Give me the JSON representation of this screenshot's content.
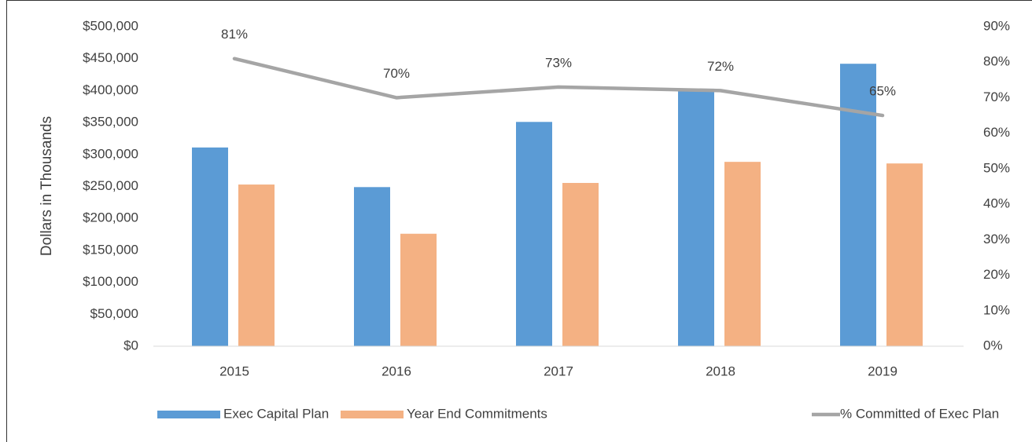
{
  "chart_data": {
    "type": "bar",
    "y_label": "Dollars in Thousands",
    "categories": [
      "2015",
      "2016",
      "2017",
      "2018",
      "2019"
    ],
    "series": [
      {
        "name": "Exec Capital Plan",
        "color": "#5b9bd5",
        "type": "bar",
        "values": [
          311000,
          249000,
          351000,
          403000,
          442000
        ]
      },
      {
        "name": "Year End Commitments",
        "color": "#f4b183",
        "type": "bar",
        "values": [
          253000,
          176000,
          255500,
          288500,
          286000
        ]
      },
      {
        "name": "% Committed of Exec Plan",
        "color": "#a5a5a5",
        "type": "line",
        "axis": "y2",
        "values": [
          81,
          70,
          73,
          72,
          65
        ],
        "value_labels": [
          "81%",
          "70%",
          "73%",
          "72%",
          "65%"
        ]
      }
    ],
    "ylim": [
      0,
      500000
    ],
    "yticks": [
      {
        "value": 0,
        "label": "$0"
      },
      {
        "value": 50000,
        "label": "$50,000"
      },
      {
        "value": 100000,
        "label": "$100,000"
      },
      {
        "value": 150000,
        "label": "$150,000"
      },
      {
        "value": 200000,
        "label": "$200,000"
      },
      {
        "value": 250000,
        "label": "$250,000"
      },
      {
        "value": 300000,
        "label": "$300,000"
      },
      {
        "value": 350000,
        "label": "$350,000"
      },
      {
        "value": 400000,
        "label": "$400,000"
      },
      {
        "value": 450000,
        "label": "$450,000"
      },
      {
        "value": 500000,
        "label": "$500,000"
      }
    ],
    "y2lim": [
      0,
      90
    ],
    "y2ticks": [
      {
        "value": 0,
        "label": "0%"
      },
      {
        "value": 10,
        "label": "10%"
      },
      {
        "value": 20,
        "label": "20%"
      },
      {
        "value": 30,
        "label": "30%"
      },
      {
        "value": 40,
        "label": "40%"
      },
      {
        "value": 50,
        "label": "50%"
      },
      {
        "value": 60,
        "label": "60%"
      },
      {
        "value": 70,
        "label": "70%"
      },
      {
        "value": 80,
        "label": "80%"
      },
      {
        "value": 90,
        "label": "90%"
      }
    ],
    "grid": false,
    "legend": "bottom"
  }
}
